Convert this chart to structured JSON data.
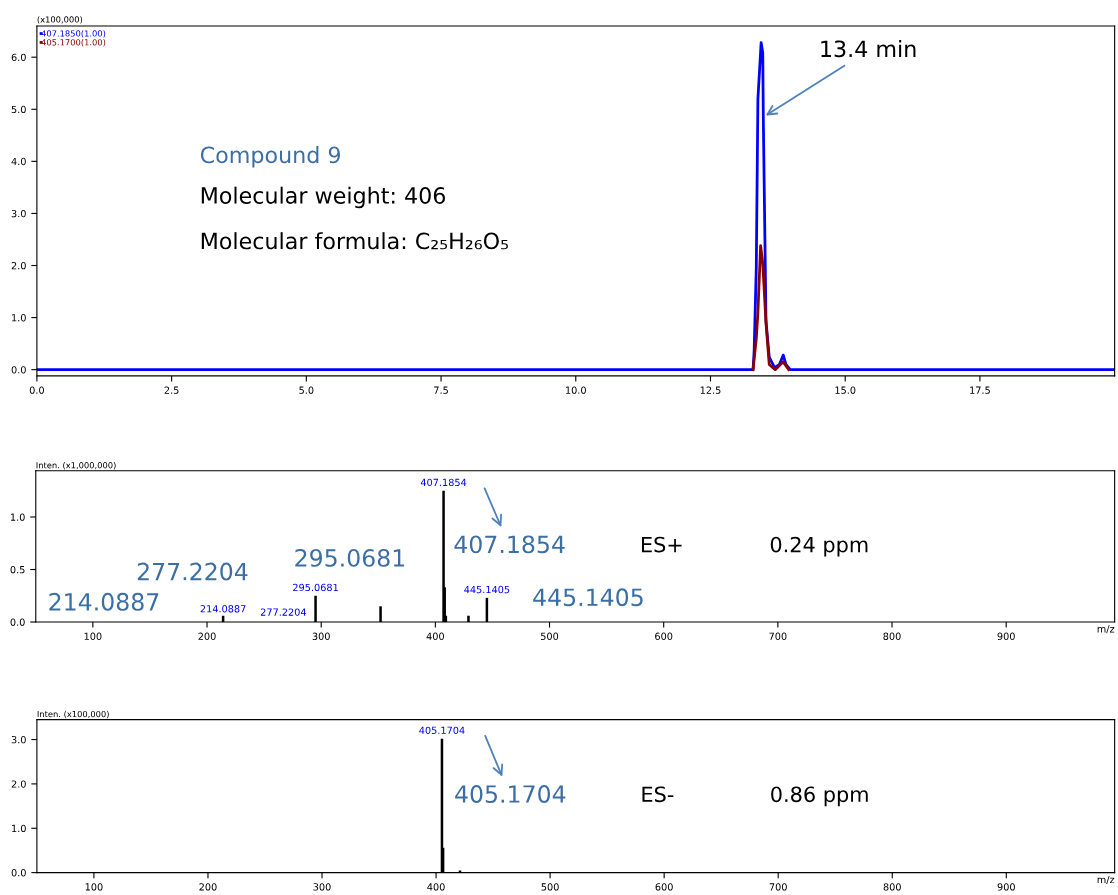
{
  "chart_data": [
    {
      "type": "line",
      "ylabel": "(x100,000)",
      "xlim": [
        0,
        20
      ],
      "ylim": [
        -0.12,
        6.6
      ],
      "xticks": [
        {
          "value": 0,
          "label": "0.0"
        },
        {
          "value": 2.5,
          "label": "2.5"
        },
        {
          "value": 5,
          "label": "5.0"
        },
        {
          "value": 7.5,
          "label": "7.5"
        },
        {
          "value": 10,
          "label": "10.0"
        },
        {
          "value": 12.5,
          "label": "12.5"
        },
        {
          "value": 15,
          "label": "15.0"
        },
        {
          "value": 17.5,
          "label": "17.5"
        }
      ],
      "yticks": [
        {
          "value": 0,
          "label": "0.0"
        },
        {
          "value": 1,
          "label": "1.0"
        },
        {
          "value": 2,
          "label": "2.0"
        },
        {
          "value": 3,
          "label": "3.0"
        },
        {
          "value": 4,
          "label": "4.0"
        },
        {
          "value": 5,
          "label": "5.0"
        },
        {
          "value": 6,
          "label": "6.0"
        }
      ],
      "grid": false,
      "legend": "top left",
      "marker": "none",
      "line_style": "solid",
      "series": [
        {
          "name": "407.1850(1.00)",
          "color": "#0000ff",
          "x": [
            0,
            13.29,
            13.31,
            13.35,
            13.38,
            13.44,
            13.47,
            13.48,
            13.51,
            13.53,
            13.59,
            13.69,
            13.78,
            13.85,
            13.9,
            13.98,
            20
          ],
          "values": [
            0,
            0,
            0.35,
            1.96,
            5.2,
            6.28,
            6.08,
            4.85,
            2.5,
            0.93,
            0.24,
            0.04,
            0.1,
            0.28,
            0.1,
            0,
            0
          ]
        },
        {
          "name": "405.1700(1.00)",
          "color": "#8b0000",
          "x": [
            13.29,
            13.35,
            13.38,
            13.43,
            13.47,
            13.53,
            13.59,
            13.7,
            13.85,
            13.95
          ],
          "values": [
            0,
            0.6,
            1.1,
            2.38,
            2.04,
            0.9,
            0.1,
            0,
            0.15,
            0
          ]
        }
      ],
      "annotations": [
        "Compound 9",
        "Molecular weight: 406",
        "Molecular formula: C₂₅H₂₆O₅",
        {
          "text": "13.4 min",
          "x": 13.48,
          "y": 4.85
        }
      ]
    },
    {
      "type": "bar",
      "ylabel": "Inten. (x1,000,000)",
      "xlabel": "m/z",
      "xlim": [
        50,
        995
      ],
      "ylim": [
        0,
        1.44
      ],
      "xticks": [
        100,
        200,
        300,
        400,
        500,
        600,
        700,
        800,
        900
      ],
      "yticks": [
        {
          "value": 0,
          "label": "0.0"
        },
        {
          "value": 0.5,
          "label": "0.5"
        },
        {
          "value": 1,
          "label": "1.0"
        }
      ],
      "grid": false,
      "color": "#000000",
      "x": [
        214.0887,
        277.2204,
        295.0681,
        352,
        407.1854,
        408.19,
        409.19,
        429,
        445.1405
      ],
      "values": [
        0.06,
        null,
        0.25,
        0.15,
        1.25,
        0.33,
        0.06,
        0.06,
        0.23
      ],
      "annotations": [
        {
          "text": "214.0887",
          "x": 214.0887,
          "y": 0.06
        },
        "277.2204",
        {
          "text": "295.0681",
          "x": 295.0681,
          "y": 0.25
        },
        {
          "text": "407.1854",
          "x": 407.1854,
          "y": 1.25
        },
        {
          "text": "445.1405",
          "x": 445.1405,
          "y": 0.23
        },
        "214.0887",
        "277.2204",
        "295.0681",
        "407.1854",
        "445.1405",
        "ES+",
        "0.24 ppm"
      ]
    },
    {
      "type": "bar",
      "ylabel": "Inten. (x100,000)",
      "xlabel": "m/z",
      "xlim": [
        50,
        995
      ],
      "ylim": [
        0,
        3.45
      ],
      "xticks": [
        100,
        200,
        300,
        400,
        500,
        600,
        700,
        800,
        900
      ],
      "yticks": [
        {
          "value": 0,
          "label": "0.0"
        },
        {
          "value": 1,
          "label": "1.0"
        },
        {
          "value": 2,
          "label": "2.0"
        },
        {
          "value": 3,
          "label": "3.0"
        }
      ],
      "grid": false,
      "color": "#000000",
      "x": [
        405.1704,
        406.17,
        421
      ],
      "values": [
        3.02,
        0.56,
        0.05
      ],
      "annotations": [
        {
          "text": "405.1704",
          "x": 405.1704,
          "y": 3.02
        },
        "405.1704",
        "ES-",
        "0.86 ppm"
      ]
    }
  ]
}
